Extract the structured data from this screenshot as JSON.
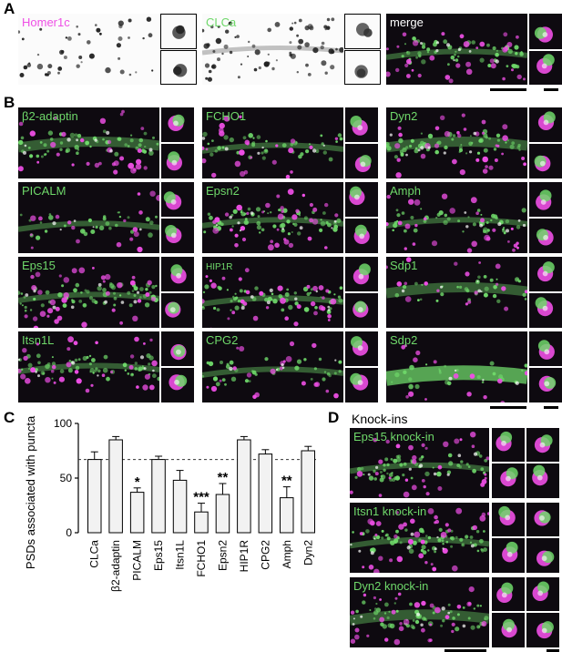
{
  "panels": {
    "a": "A",
    "b": "B",
    "c": "C",
    "d": "D"
  },
  "panel_a": {
    "tiles": [
      "Homer1c",
      "CLCa",
      "merge"
    ]
  },
  "panel_b": {
    "tiles": [
      "β2-adaptin",
      "FCHO1",
      "Dyn2",
      "PICALM",
      "Epsn2",
      "Amph",
      "Eps15",
      "HIP1R",
      "Sdp1",
      "Itsn1L",
      "CPG2",
      "Sdp2"
    ]
  },
  "panel_d": {
    "header": "Knock-ins",
    "tiles": [
      "Eps15 knock-in",
      "Itsn1 knock-in",
      "Dyn2 knock-in"
    ]
  },
  "colors": {
    "green": "#6fd86a",
    "magenta": "#ef4fe6",
    "bar_fill": "#f2f2f2"
  },
  "chart_data": {
    "type": "bar",
    "title": "",
    "ylabel": "PSDs  associated with puncta (%)",
    "ylim": [
      0,
      100
    ],
    "yticks": [
      "0",
      "50",
      "100"
    ],
    "categories": [
      "CLCa",
      "β2-adaptin",
      "PICALM",
      "Eps15",
      "Itsn1L",
      "FCHO1",
      "Epsn2",
      "HIP1R",
      "CPG2",
      "Amph",
      "Dyn2"
    ],
    "values": [
      67,
      85,
      37,
      67,
      48,
      19,
      35,
      85,
      72,
      32,
      75
    ],
    "errors": [
      7,
      3,
      4,
      3,
      9,
      8,
      10,
      3,
      4,
      10,
      4
    ],
    "significance": [
      "",
      "",
      "*",
      "",
      "",
      "***",
      "**",
      "",
      "",
      "**",
      ""
    ],
    "reference_line": 67
  }
}
